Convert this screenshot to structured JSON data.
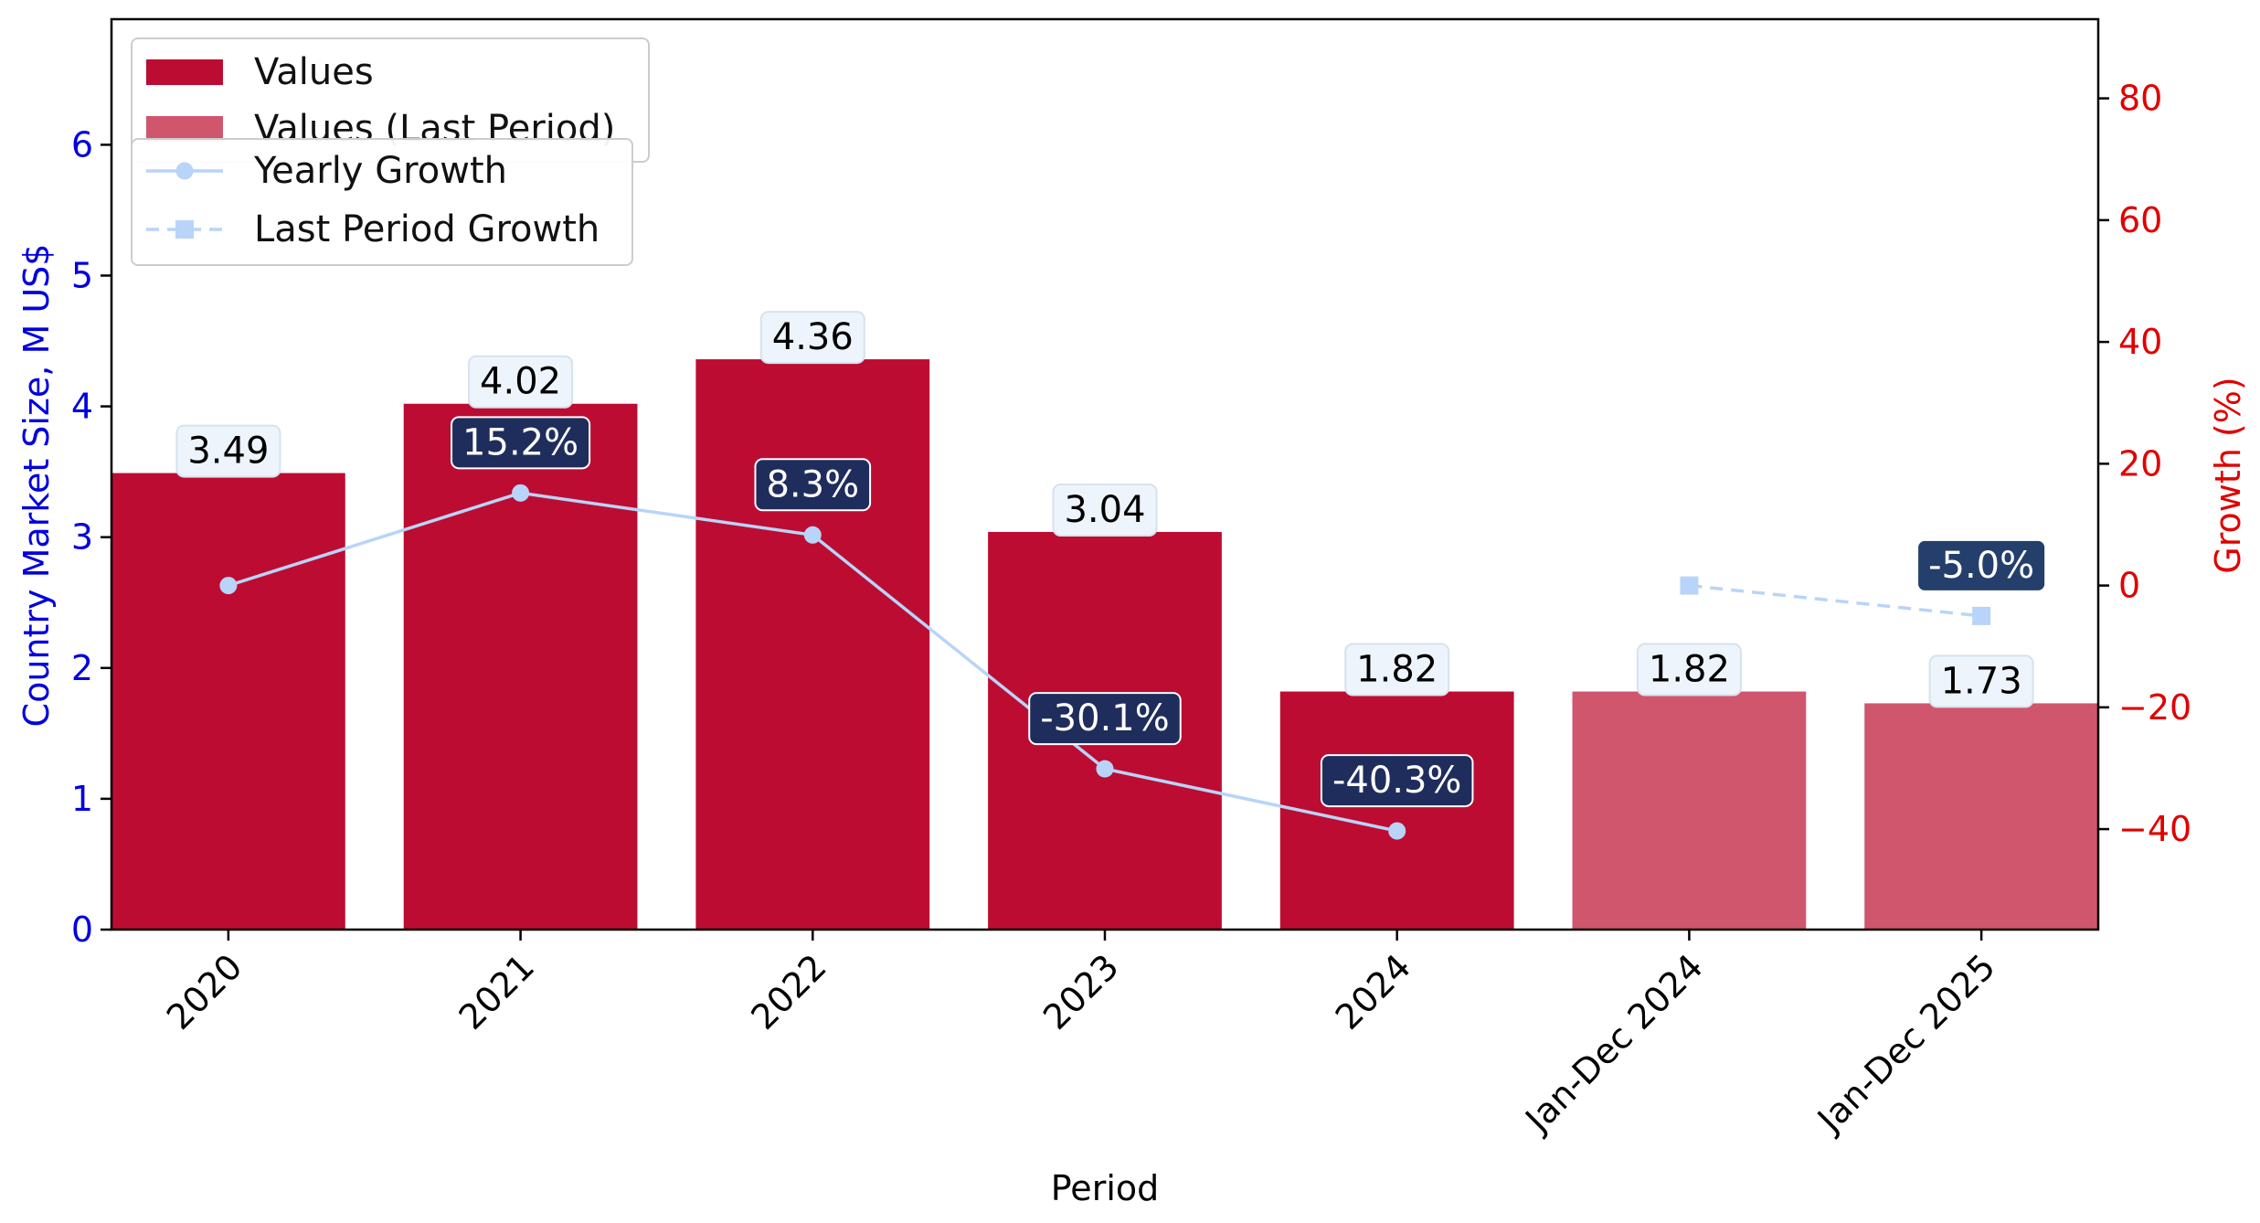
{
  "chart_data": {
    "type": "bar",
    "categories": [
      "2020",
      "2021",
      "2022",
      "2023",
      "2024",
      "Jan-Dec 2024",
      "Jan-Dec 2025"
    ],
    "series": [
      {
        "name": "Values",
        "values": [
          3.49,
          4.02,
          4.36,
          3.04,
          1.82,
          null,
          null
        ],
        "color": "#bc0c32",
        "value_labels": [
          "3.49",
          "4.02",
          "4.36",
          "3.04",
          "1.82",
          null,
          null
        ]
      },
      {
        "name": "Values (Last Period)",
        "values": [
          null,
          null,
          null,
          null,
          null,
          1.82,
          1.73
        ],
        "color": "#d0566d",
        "value_labels": [
          null,
          null,
          null,
          null,
          null,
          "1.82",
          "1.73"
        ]
      },
      {
        "name": "Yearly Growth",
        "type": "line",
        "axis": "right",
        "values": [
          0,
          15.2,
          8.3,
          -30.1,
          -40.3,
          null,
          null
        ],
        "labels": [
          null,
          "15.2%",
          "8.3%",
          "-30.1%",
          "-40.3%",
          null,
          null
        ],
        "color": "#b8d4f8",
        "marker": "circle"
      },
      {
        "name": "Last Period Growth",
        "type": "line",
        "axis": "right",
        "dashed": true,
        "values": [
          null,
          null,
          null,
          null,
          null,
          0,
          -5.0
        ],
        "labels": [
          null,
          null,
          null,
          null,
          null,
          null,
          "-5.0%"
        ],
        "color": "#b8d4f8",
        "marker": "square"
      }
    ],
    "xlabel": "Period",
    "ylabel": "Country Market Size, M US$",
    "y2label": "Growth (%)",
    "ylim": [
      0,
      6.96
    ],
    "y2lim": [
      -56.5,
      93
    ],
    "yticks": [
      "0",
      "1",
      "2",
      "3",
      "4",
      "5",
      "6"
    ],
    "y2ticks": [
      "−40",
      "−20",
      "0",
      "20",
      "40",
      "60",
      "80"
    ],
    "grid": false,
    "legend_position": "top-left",
    "colors": {
      "left_axis": "#0000dd",
      "right_axis": "#e00000",
      "value_label_bg": "#eef4fb",
      "growth_label_bg": "#1f2d5c",
      "last_growth_label_bg": "#243f6b"
    }
  }
}
